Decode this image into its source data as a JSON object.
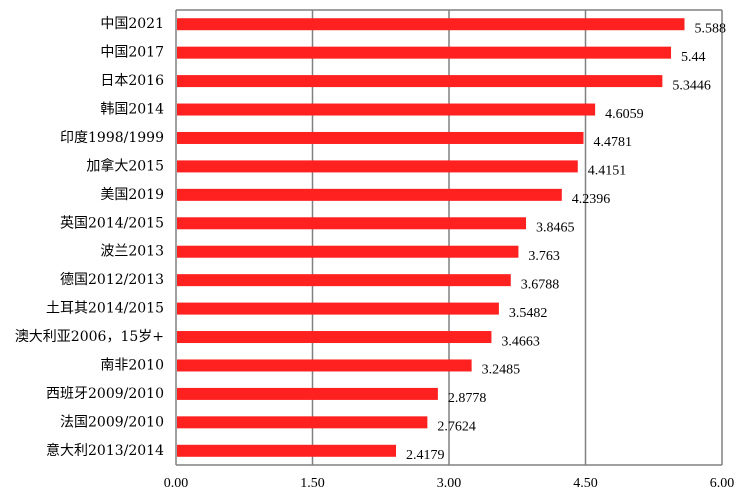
{
  "chart_data": {
    "type": "bar",
    "orientation": "horizontal",
    "categories": [
      "中国2021",
      "中国2017",
      "日本2016",
      "韩国2014",
      "印度1998/1999",
      "加拿大2015",
      "美国2019",
      "英国2014/2015",
      "波兰2013",
      "德国2012/2013",
      "土耳其2014/2015",
      "澳大利亚2006，15岁+",
      "南非2010",
      "西班牙2009/2010",
      "法国2009/2010",
      "意大利2013/2014"
    ],
    "values": [
      5.588,
      5.44,
      5.3446,
      4.6059,
      4.4781,
      4.4151,
      4.2396,
      3.8465,
      3.763,
      3.6788,
      3.5482,
      3.4663,
      3.2485,
      2.8778,
      2.7624,
      2.4179
    ],
    "value_labels": [
      "5.588",
      "5.44",
      "5.3446",
      "4.6059",
      "4.4781",
      "4.4151",
      "4.2396",
      "3.8465",
      "3.763",
      "3.6788",
      "3.5482",
      "3.4663",
      "3.2485",
      "2.8778",
      "2.7624",
      "2.4179"
    ],
    "xlim": [
      0,
      6
    ],
    "x_ticks": [
      0,
      1.5,
      3,
      4.5,
      6
    ],
    "x_tick_labels": [
      "0.00",
      "1.50",
      "3.00",
      "4.50",
      "6.00"
    ],
    "grid": "vertical",
    "bar_color": "#ff2020",
    "title": "",
    "xlabel": "",
    "ylabel": ""
  }
}
